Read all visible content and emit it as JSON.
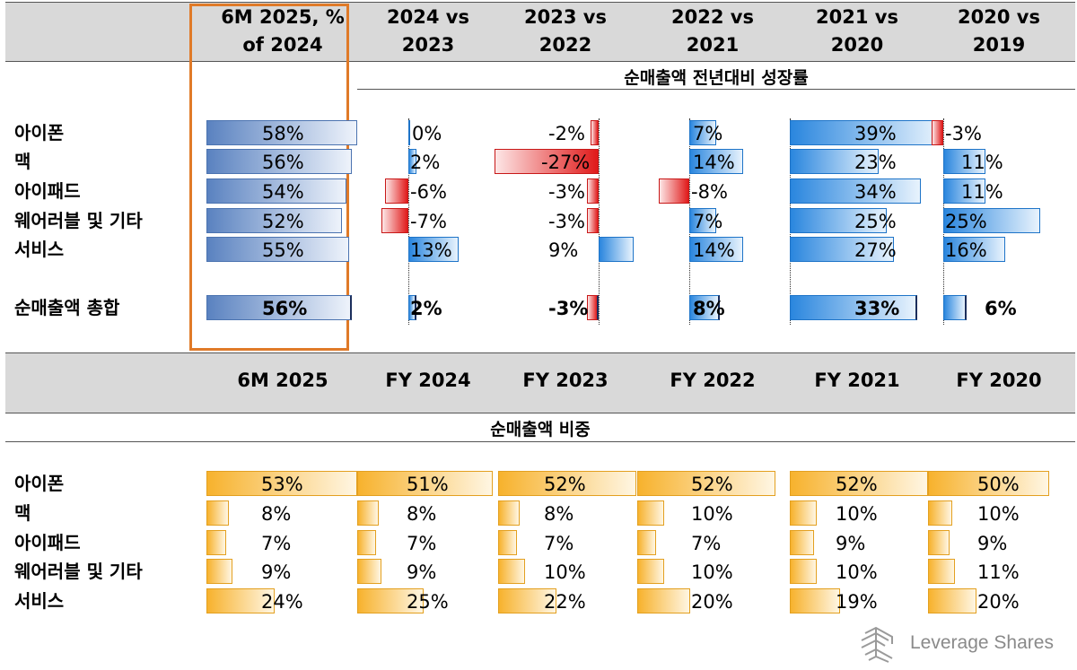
{
  "top_header": {
    "columns": [
      "6M 2025, %\nof 2024",
      "2024 vs\n2023",
      "2023 vs\n2022",
      "2022 vs\n2021",
      "2021 vs\n2020",
      "2020 vs\n2019"
    ]
  },
  "bottom_header": {
    "columns": [
      "6M 2025",
      "FY 2024",
      "FY 2023",
      "FY 2022",
      "FY 2021",
      "FY 2020"
    ]
  },
  "chart_data": [
    {
      "type": "bar",
      "title": "순매출액 전년대비 성장률",
      "categories": [
        "아이폰",
        "맥",
        "아이패드",
        "웨어러블 및 기타",
        "서비스",
        "순매출액 총합"
      ],
      "columns": [
        "6M 2025, % of 2024",
        "2024 vs 2023",
        "2023 vs 2022",
        "2022 vs 2021",
        "2021 vs 2020",
        "2020 vs 2019"
      ],
      "unit": "%",
      "values": [
        [
          58,
          0,
          -2,
          7,
          39,
          -3
        ],
        [
          56,
          2,
          -27,
          14,
          23,
          11
        ],
        [
          54,
          -6,
          -3,
          -8,
          34,
          11
        ],
        [
          52,
          -7,
          -3,
          7,
          25,
          25
        ],
        [
          55,
          13,
          9,
          14,
          27,
          16
        ],
        [
          56,
          2,
          -3,
          8,
          33,
          6
        ]
      ]
    },
    {
      "type": "bar",
      "title": "순매출액 비중",
      "categories": [
        "아이폰",
        "맥",
        "아이패드",
        "웨어러블 및 기타",
        "서비스"
      ],
      "columns": [
        "6M 2025",
        "FY 2024",
        "FY 2023",
        "FY 2022",
        "FY 2021",
        "FY 2020"
      ],
      "unit": "%",
      "values": [
        [
          53,
          51,
          52,
          52,
          52,
          50
        ],
        [
          8,
          8,
          8,
          10,
          10,
          10
        ],
        [
          7,
          7,
          7,
          7,
          9,
          9
        ],
        [
          9,
          9,
          10,
          10,
          10,
          11
        ],
        [
          24,
          25,
          22,
          20,
          19,
          20
        ]
      ]
    }
  ],
  "colors": {
    "positive": "#2a86de",
    "negative": "#e01a1a",
    "share": "#f7b22d",
    "first_column": "#5a82c0",
    "highlight": "#e07a28"
  },
  "logo": {
    "text": "Leverage Shares",
    "icon": "leverage-shares-logo-icon"
  }
}
